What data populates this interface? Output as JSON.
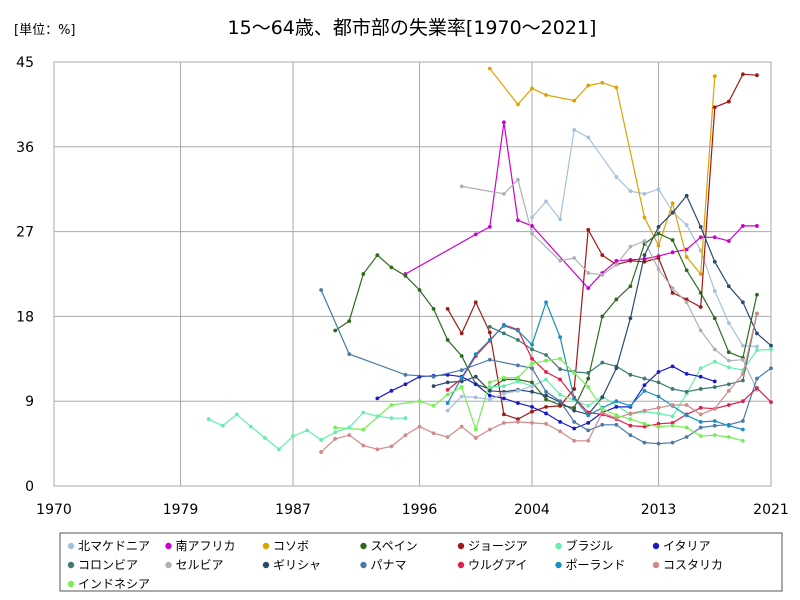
{
  "chart_data": {
    "type": "line",
    "title": "15～64歳、都市部の失業率[1970～2021]",
    "unit_label": "[単位：%]",
    "xlim": [
      1970,
      2021
    ],
    "ylim": [
      0,
      45
    ],
    "x_ticks": [
      1970,
      1979,
      1987,
      1996,
      2004,
      2013,
      2021
    ],
    "y_ticks": [
      0,
      9,
      18,
      27,
      36,
      45
    ],
    "grid": true,
    "legend_position": "bottom",
    "series": [
      {
        "name": "北マケドニア",
        "color": "#a6c1db",
        "x": [
          2004,
          2005,
          2006,
          2007,
          2008,
          2010,
          2011,
          2012,
          2013,
          2014,
          2015,
          2016,
          2017,
          2018,
          2019,
          2020
        ],
        "y": [
          28.5,
          30.2,
          28.3,
          37.8,
          37.0,
          32.8,
          31.3,
          31.0,
          31.5,
          29.1,
          27.7,
          25.0,
          20.7,
          17.3,
          14.9,
          14.8
        ]
      },
      {
        "name": "南アフリカ",
        "color": "#cc00cc",
        "x": [
          1995,
          2000,
          2001,
          2002,
          2003,
          2004,
          2008,
          2009,
          2010,
          2011,
          2012,
          2013,
          2014,
          2015,
          2016,
          2017,
          2018,
          2019,
          2020
        ],
        "y": [
          22.5,
          26.7,
          27.5,
          38.6,
          28.2,
          27.6,
          21.0,
          22.6,
          23.9,
          24.0,
          24.1,
          24.4,
          24.8,
          25.1,
          26.4,
          26.4,
          26.0,
          27.6,
          27.6
        ]
      },
      {
        "name": "コソボ",
        "color": "#e0a000",
        "x": [
          2001,
          2003,
          2004,
          2005,
          2007,
          2008,
          2009,
          2010,
          2012,
          2013,
          2014,
          2015,
          2016,
          2017
        ],
        "y": [
          44.3,
          40.5,
          42.2,
          41.5,
          40.9,
          42.5,
          42.8,
          42.3,
          28.5,
          25.5,
          30.0,
          24.3,
          22.5,
          43.5
        ]
      },
      {
        "name": "スペイン",
        "color": "#2e6b1f",
        "x": [
          1990,
          1991,
          1992,
          1993,
          1994,
          1995,
          1996,
          1997,
          1998,
          1999,
          2000,
          2001,
          2002,
          2003,
          2004,
          2005,
          2006,
          2007,
          2008,
          2009,
          2010,
          2011,
          2012,
          2013,
          2014,
          2015,
          2016,
          2017,
          2018,
          2019,
          2020
        ],
        "y": [
          16.5,
          17.5,
          22.5,
          24.5,
          23.2,
          22.3,
          20.8,
          18.8,
          15.5,
          13.8,
          10.8,
          10.3,
          11.3,
          11.3,
          11.0,
          9.2,
          8.6,
          8.3,
          11.4,
          18.0,
          19.8,
          21.2,
          25.7,
          26.8,
          26.1,
          22.9,
          20.5,
          17.8,
          14.2,
          13.6,
          20.3
        ]
      },
      {
        "name": "ジョージア",
        "color": "#a01818",
        "x": [
          1998,
          1999,
          2000,
          2001,
          2002,
          2003,
          2004,
          2005,
          2006,
          2007,
          2008,
          2009,
          2010,
          2011,
          2012,
          2013,
          2014,
          2015,
          2016,
          2017,
          2018,
          2019,
          2020
        ],
        "y": [
          18.8,
          16.2,
          19.5,
          16.3,
          7.6,
          7.1,
          7.9,
          8.4,
          8.5,
          10.3,
          27.2,
          24.5,
          23.5,
          23.9,
          23.8,
          24.2,
          20.5,
          19.8,
          19.0,
          40.2,
          40.8,
          43.7,
          43.6
        ]
      },
      {
        "name": "ブラジル",
        "color": "#66eeaa",
        "x": [
          2001,
          2002,
          2003,
          2004,
          2005,
          2006,
          2007,
          2008,
          2009,
          2011,
          2012,
          2013,
          2014,
          2015,
          2016,
          2017,
          2018,
          2019,
          2020,
          2021
        ],
        "y": [
          10.5,
          10.6,
          11.1,
          10.6,
          11.3,
          9.7,
          9.1,
          8.5,
          9.5,
          7.6,
          7.9,
          7.7,
          7.4,
          9.8,
          12.5,
          13.2,
          12.6,
          12.3,
          14.4,
          14.5
        ]
      },
      {
        "name": "イタリア",
        "color": "#1a1acc",
        "x": [
          1993,
          1994,
          1995,
          1996,
          1997,
          1998,
          1999,
          2000,
          2001,
          2002,
          2003,
          2004,
          2005,
          2006,
          2007,
          2008,
          2009,
          2010,
          2011,
          2012,
          2013,
          2014,
          2015,
          2016,
          2017
        ],
        "y": [
          9.3,
          10.1,
          10.8,
          11.6,
          11.7,
          11.8,
          11.6,
          10.8,
          9.6,
          9.3,
          8.8,
          8.4,
          7.7,
          6.8,
          6.1,
          6.7,
          7.8,
          8.4,
          8.4,
          10.7,
          12.1,
          12.7,
          11.9,
          11.6,
          11.1
        ]
      },
      {
        "name": "コロンビア",
        "color": "#3c7b70",
        "x": [
          2001,
          2002,
          2003,
          2004,
          2005,
          2006,
          2007,
          2008,
          2009,
          2010,
          2011,
          2012,
          2013,
          2014,
          2015,
          2016,
          2017,
          2018,
          2019,
          2020
        ],
        "y": [
          16.9,
          16.2,
          15.5,
          14.5,
          13.9,
          12.4,
          12.1,
          12.0,
          13.1,
          12.7,
          11.8,
          11.4,
          11.0,
          10.3,
          10.0,
          10.3,
          10.5,
          10.8,
          11.2,
          18.3
        ]
      },
      {
        "name": "セルビア",
        "color": "#b0b0b8",
        "x": [
          1999,
          2002,
          2003,
          2004,
          2006,
          2007,
          2008,
          2009,
          2010,
          2011,
          2012,
          2013,
          2014,
          2015,
          2016,
          2017,
          2018,
          2019,
          2020
        ],
        "y": [
          31.8,
          31.0,
          32.5,
          26.8,
          23.9,
          24.2,
          22.6,
          22.4,
          23.5,
          25.4,
          26.0,
          23.0,
          21.0,
          19.5,
          16.5,
          14.5,
          13.3,
          13.4,
          10.2
        ]
      },
      {
        "name": "ギリシャ",
        "color": "#2c4a6e",
        "x": [
          1997,
          1998,
          1999,
          2000,
          2001,
          2002,
          2003,
          2004,
          2005,
          2006,
          2007,
          2008,
          2009,
          2010,
          2011,
          2012,
          2013,
          2014,
          2015,
          2016,
          2017,
          2018,
          2019,
          2020,
          2021
        ],
        "y": [
          10.6,
          11.0,
          11.1,
          11.6,
          10.1,
          10.0,
          10.2,
          10.0,
          9.6,
          8.9,
          8.0,
          7.6,
          9.4,
          12.5,
          17.8,
          24.5,
          27.5,
          29.0,
          30.8,
          27.5,
          23.8,
          21.2,
          19.5,
          16.2,
          14.9
        ]
      },
      {
        "name": "パナマ",
        "color": "#4a7aa8",
        "x": [
          1989,
          1991,
          1995,
          1997,
          1999,
          2001,
          2003,
          2004,
          2005,
          2006,
          2007,
          2008,
          2009,
          2010,
          2011,
          2012,
          2013,
          2014,
          2015,
          2016,
          2017,
          2018,
          2019,
          2020,
          2021
        ],
        "y": [
          20.8,
          14.0,
          11.8,
          11.6,
          12.3,
          13.4,
          12.8,
          12.5,
          10.0,
          9.0,
          6.8,
          5.9,
          6.5,
          6.5,
          5.4,
          4.6,
          4.5,
          4.6,
          5.2,
          6.2,
          6.4,
          6.5,
          6.9,
          11.4,
          12.5
        ]
      },
      {
        "name": "ウルグアイ",
        "color": "#e0204a",
        "x": [
          1998,
          1999,
          2000,
          2001,
          2002,
          2003,
          2004,
          2005,
          2006,
          2007,
          2008,
          2009,
          2010,
          2011,
          2012,
          2013,
          2014,
          2015,
          2016,
          2017,
          2018,
          2019,
          2020,
          2021
        ],
        "y": [
          10.2,
          11.4,
          13.8,
          15.4,
          17.1,
          16.6,
          13.5,
          12.1,
          11.3,
          9.4,
          7.8,
          7.6,
          7.1,
          6.4,
          6.3,
          6.6,
          6.7,
          7.6,
          8.3,
          8.2,
          8.6,
          9.0,
          10.4,
          8.9
        ]
      },
      {
        "name": "ポーランド",
        "color": "#1b8fc0",
        "x": [
          1998,
          1999,
          2000,
          2001,
          2002,
          2003,
          2004,
          2005,
          2006,
          2007,
          2008,
          2009,
          2010,
          2011,
          2012,
          2013,
          2014,
          2015,
          2016,
          2017,
          2018,
          2019
        ],
        "y": [
          8.8,
          11.5,
          14.0,
          15.5,
          17.0,
          16.5,
          15.0,
          19.5,
          15.8,
          9.3,
          7.5,
          8.3,
          9.0,
          8.5,
          10.1,
          9.5,
          8.5,
          7.5,
          6.8,
          6.9,
          6.4,
          6.0
        ]
      },
      {
        "name": "コスタリカ",
        "color": "#d08a8a",
        "x": [
          1989,
          1990,
          1991,
          1992,
          1993,
          1994,
          1995,
          1996,
          1997,
          1998,
          1999,
          2000,
          2001,
          2002,
          2003,
          2004,
          2005,
          2006,
          2007,
          2008,
          2009,
          2010,
          2011,
          2012,
          2013,
          2014,
          2015,
          2016,
          2017,
          2018,
          2019,
          2020
        ],
        "y": [
          3.6,
          5.0,
          5.4,
          4.3,
          3.9,
          4.2,
          5.4,
          6.3,
          5.6,
          5.2,
          6.3,
          5.1,
          6.0,
          6.7,
          6.8,
          6.7,
          6.6,
          5.8,
          4.8,
          4.8,
          7.8,
          7.2,
          7.7,
          8.0,
          8.3,
          8.6,
          8.6,
          7.6,
          8.2,
          10.1,
          11.9,
          18.3
        ]
      },
      {
        "name": "インドネシア",
        "color": "#77ee55",
        "x": [
          1990,
          1992,
          1994,
          1996,
          1997,
          1998,
          1999,
          2000,
          2001,
          2002,
          2003,
          2004,
          2005,
          2006,
          2007,
          2008,
          2009,
          2010,
          2011,
          2012,
          2013,
          2014,
          2015,
          2016,
          2017,
          2018,
          2019
        ],
        "y": [
          6.2,
          6.0,
          8.6,
          9.0,
          8.5,
          9.7,
          10.5,
          6.0,
          11.0,
          11.5,
          11.5,
          13.0,
          13.3,
          13.5,
          12.0,
          10.5,
          8.2,
          7.5,
          7.1,
          6.6,
          6.3,
          6.4,
          6.2,
          5.3,
          5.4,
          5.2,
          4.8
        ]
      },
      {
        "name": "__late_gray",
        "color": "#a6c1db",
        "legend": false,
        "x": [
          1998,
          1999,
          2000,
          2001,
          2002,
          2003,
          2004
        ],
        "y": [
          8.0,
          9.5,
          9.4,
          9.2,
          9.8,
          10.1,
          10.6
        ]
      },
      {
        "name": "__ind_early",
        "color": "#66eeaa",
        "legend": false,
        "x": [
          1981,
          1982,
          1983,
          1984,
          1985,
          1986,
          1987,
          1988,
          1989,
          1990,
          1991,
          1992,
          1993,
          1994,
          1995
        ],
        "y": [
          7.1,
          6.4,
          7.6,
          6.3,
          5.1,
          3.9,
          5.3,
          5.9,
          4.9,
          5.7,
          6.2,
          7.8,
          7.4,
          7.2,
          7.2
        ]
      }
    ]
  }
}
